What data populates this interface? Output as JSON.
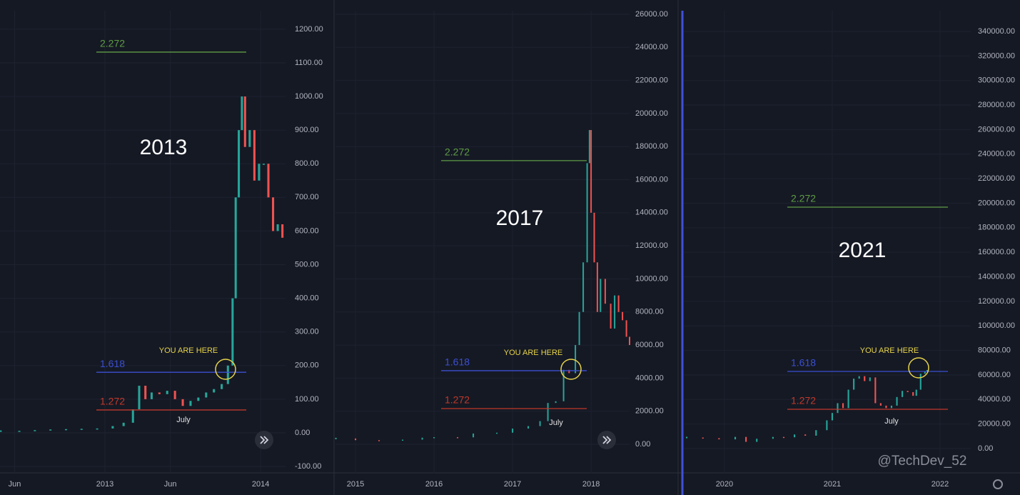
{
  "chart_data": [
    {
      "type": "candlestick",
      "title": "2013",
      "annotations": [
        "YOU ARE HERE",
        "July"
      ],
      "up_color": "#26a69a",
      "down_color": "#ef5350",
      "x": [
        2012.33,
        2012.45,
        2012.55,
        2012.65,
        2012.75,
        2012.85,
        2012.95,
        2013.05,
        2013.12,
        2013.18,
        2013.22,
        2013.26,
        2013.3,
        2013.35,
        2013.4,
        2013.45,
        2013.5,
        2013.55,
        2013.6,
        2013.65,
        2013.7,
        2013.75,
        2013.79,
        2013.82,
        2013.84,
        2013.86,
        2013.88,
        2013.9,
        2013.93,
        2013.96,
        2013.99,
        2014.02,
        2014.05,
        2014.08,
        2014.11,
        2014.14
      ],
      "values": [
        5,
        6,
        8,
        10,
        11,
        12,
        13,
        20,
        30,
        70,
        140,
        100,
        120,
        115,
        125,
        100,
        80,
        95,
        105,
        120,
        130,
        145,
        200,
        400,
        700,
        900,
        1000,
        850,
        900,
        750,
        800,
        800,
        700,
        600,
        620,
        580
      ],
      "xlim": [
        2012.326,
        2014.16
      ],
      "ylim": [
        -119,
        1255
      ],
      "xticks": [
        {
          "value": 2012.42,
          "label": "Jun"
        },
        2013,
        {
          "value": 2013.42,
          "label": "Jun"
        },
        2014
      ],
      "yticks": [
        {
          "value": -100,
          "label": "-100.00"
        },
        {
          "value": 0,
          "label": "0.00"
        },
        {
          "value": 100,
          "label": "100.00"
        },
        {
          "value": 200,
          "label": "200.00"
        },
        {
          "value": 300,
          "label": "300.00"
        },
        {
          "value": 400,
          "label": "400.00"
        },
        {
          "value": 500,
          "label": "500.00"
        },
        {
          "value": 600,
          "label": "600.00"
        },
        {
          "value": 700,
          "label": "700.00"
        },
        {
          "value": 800,
          "label": "800.00"
        },
        {
          "value": 900,
          "label": "900.00"
        },
        {
          "value": 1000,
          "label": "1000.00"
        },
        {
          "value": 1100,
          "label": "1100.00"
        },
        {
          "value": 1200,
          "label": "1200.00"
        }
      ],
      "levels": [
        {
          "label": "2.272",
          "value": 1132,
          "color": "#5f9c45"
        },
        {
          "label": "1.618",
          "value": 180,
          "color": "#3b4fd1"
        },
        {
          "label": "1.272",
          "value": 68,
          "color": "#c0392b"
        }
      ]
    },
    {
      "type": "candlestick",
      "title": "2017",
      "annotations": [
        "YOU ARE HERE",
        "July"
      ],
      "up_color": "#26a69a",
      "down_color": "#ef5350",
      "x": [
        2014.75,
        2015,
        2015.3,
        2015.6,
        2015.85,
        2016,
        2016.3,
        2016.5,
        2016.8,
        2017,
        2017.2,
        2017.35,
        2017.45,
        2017.55,
        2017.65,
        2017.72,
        2017.8,
        2017.85,
        2017.9,
        2017.95,
        2017.98,
        2018,
        2018.04,
        2018.08,
        2018.12,
        2018.18,
        2018.25,
        2018.3,
        2018.35,
        2018.4,
        2018.45,
        2018.49
      ],
      "values": [
        350,
        250,
        240,
        280,
        400,
        430,
        420,
        650,
        700,
        950,
        1100,
        1400,
        2500,
        2600,
        4500,
        4300,
        6000,
        8000,
        11000,
        17000,
        19000,
        14000,
        11000,
        8000,
        10000,
        8500,
        7000,
        9000,
        8000,
        7500,
        6500,
        6000
      ],
      "xlim": [
        2014.745,
        2018.49
      ],
      "ylim": [
        -1728,
        26216
      ],
      "xticks": [
        2015,
        2016,
        2017,
        2018
      ],
      "yticks": [
        {
          "value": 0,
          "label": "0.00"
        },
        {
          "value": 2000,
          "label": "2000.00"
        },
        {
          "value": 4000,
          "label": "4000.00"
        },
        {
          "value": 6000,
          "label": "6000.00"
        },
        {
          "value": 8000,
          "label": "8000.00"
        },
        {
          "value": 10000,
          "label": "10000.00"
        },
        {
          "value": 12000,
          "label": "12000.00"
        },
        {
          "value": 14000,
          "label": "14000.00"
        },
        {
          "value": 16000,
          "label": "16000.00"
        },
        {
          "value": 18000,
          "label": "18000.00"
        },
        {
          "value": 20000,
          "label": "20000.00"
        },
        {
          "value": 22000,
          "label": "22000.00"
        },
        {
          "value": 24000,
          "label": "24000.00"
        },
        {
          "value": 26000,
          "label": "26000.00"
        }
      ],
      "levels": [
        {
          "label": "2.272",
          "value": 17150,
          "color": "#5f9c45"
        },
        {
          "label": "1.618",
          "value": 4450,
          "color": "#3b4fd1"
        },
        {
          "label": "1.272",
          "value": 2160,
          "color": "#c0392b"
        }
      ]
    },
    {
      "type": "candlestick",
      "title": "2021",
      "annotations": [
        "YOU ARE HERE",
        "July"
      ],
      "up_color": "#26a69a",
      "down_color": "#ef5350",
      "x": [
        2019.65,
        2019.8,
        2019.95,
        2020.1,
        2020.2,
        2020.3,
        2020.45,
        2020.55,
        2020.65,
        2020.75,
        2020.85,
        2020.95,
        2021,
        2021.05,
        2021.1,
        2021.15,
        2021.2,
        2021.25,
        2021.3,
        2021.35,
        2021.4,
        2021.45,
        2021.5,
        2021.55,
        2021.6,
        2021.65,
        2021.7,
        2021.75,
        2021.78,
        2021.82,
        2021.86,
        2021.88
      ],
      "values": [
        9000,
        8500,
        7500,
        9500,
        5500,
        8000,
        9500,
        9200,
        11500,
        10500,
        15000,
        23000,
        29000,
        37000,
        33000,
        48000,
        57000,
        59000,
        55000,
        58000,
        37000,
        35000,
        33000,
        35000,
        42000,
        47000,
        46000,
        43000,
        48000,
        61000,
        63000,
        64000
      ],
      "xlim": [
        2019.623,
        2022.285
      ],
      "ylim": [
        -19795,
        356884
      ],
      "xticks": [
        2020,
        2021,
        2022
      ],
      "yticks": [
        {
          "value": 0,
          "label": "0.00"
        },
        {
          "value": 20000,
          "label": "20000.00"
        },
        {
          "value": 40000,
          "label": "40000.00"
        },
        {
          "value": 60000,
          "label": "60000.00"
        },
        {
          "value": 80000,
          "label": "80000.00"
        },
        {
          "value": 100000,
          "label": "100000.00"
        },
        {
          "value": 120000,
          "label": "120000.00"
        },
        {
          "value": 140000,
          "label": "140000.00"
        },
        {
          "value": 160000,
          "label": "160000.00"
        },
        {
          "value": 180000,
          "label": "180000.00"
        },
        {
          "value": 200000,
          "label": "200000.00"
        },
        {
          "value": 220000,
          "label": "220000.00"
        },
        {
          "value": 240000,
          "label": "240000.00"
        },
        {
          "value": 260000,
          "label": "260000.00"
        },
        {
          "value": 280000,
          "label": "280000.00"
        },
        {
          "value": 300000,
          "label": "300000.00"
        },
        {
          "value": 320000,
          "label": "320000.00"
        },
        {
          "value": 340000,
          "label": "340000.00"
        }
      ],
      "levels": [
        {
          "label": "2.272",
          "value": 196800,
          "color": "#5f9c45"
        },
        {
          "label": "1.618",
          "value": 62880,
          "color": "#3b4fd1"
        },
        {
          "label": "1.272",
          "value": 32000,
          "color": "#c0392b"
        }
      ]
    }
  ],
  "watermark": "@TechDev_52"
}
